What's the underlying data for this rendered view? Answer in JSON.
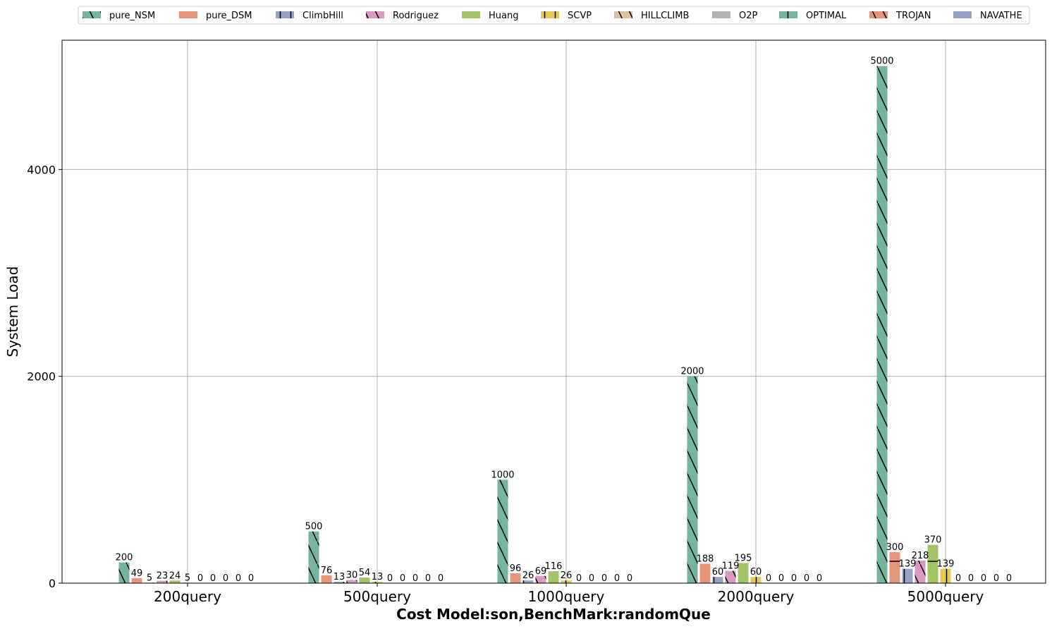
{
  "chart_data": {
    "type": "bar",
    "title": "",
    "xlabel": "Cost Model:son,BenchMark:randomQue",
    "ylabel": "System Load",
    "ylim": [
      0,
      5250
    ],
    "yticks": [
      0,
      2000,
      4000
    ],
    "grid": true,
    "legend_position": "top-center",
    "categories": [
      "200query",
      "500query",
      "1000query",
      "2000query",
      "5000query"
    ],
    "series": [
      {
        "name": "pure_NSM",
        "color": "#75b59d",
        "hatch": "backslash",
        "values": [
          200,
          500,
          1000,
          2000,
          5000
        ]
      },
      {
        "name": "pure_DSM",
        "color": "#e4957a",
        "hatch": "horizontal",
        "values": [
          49,
          76,
          96,
          188,
          300
        ]
      },
      {
        "name": "ClimbHill",
        "color": "#95a1c6",
        "hatch": "vertical",
        "values": [
          5,
          13,
          26,
          60,
          139
        ]
      },
      {
        "name": "Rodriguez",
        "color": "#da99c2",
        "hatch": "backslash",
        "values": [
          23,
          30,
          69,
          119,
          218
        ]
      },
      {
        "name": "Huang",
        "color": "#a3c466",
        "hatch": "horizontal",
        "values": [
          24,
          54,
          116,
          195,
          370
        ]
      },
      {
        "name": "SCVP",
        "color": "#e6c951",
        "hatch": "vertical",
        "values": [
          5,
          13,
          26,
          60,
          139
        ]
      },
      {
        "name": "HILLCLIMB",
        "color": "#d9c29f",
        "hatch": "backslash",
        "values": [
          0,
          0,
          0,
          0,
          0
        ]
      },
      {
        "name": "O2P",
        "color": "#b3b3b3",
        "hatch": "horizontal",
        "values": [
          0,
          0,
          0,
          0,
          0
        ]
      },
      {
        "name": "OPTIMAL",
        "color": "#75b59d",
        "hatch": "vertical",
        "values": [
          0,
          0,
          0,
          0,
          0
        ]
      },
      {
        "name": "TROJAN",
        "color": "#e4957a",
        "hatch": "backslash",
        "values": [
          0,
          0,
          0,
          0,
          0
        ]
      },
      {
        "name": "NAVATHE",
        "color": "#95a1c6",
        "hatch": "horizontal",
        "values": [
          0,
          0,
          0,
          0,
          0
        ]
      }
    ]
  }
}
